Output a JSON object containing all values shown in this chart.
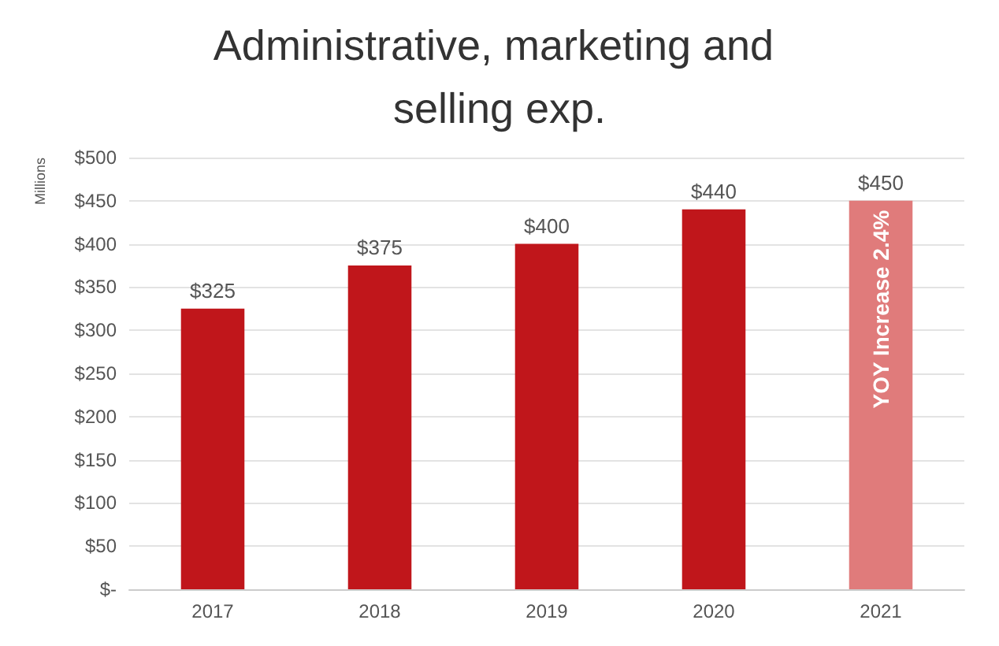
{
  "chart_data": {
    "type": "bar",
    "title": "Administrative, marketing and selling exp.",
    "ylabel": "Millions",
    "categories": [
      "2017",
      "2018",
      "2019",
      "2020",
      "2021"
    ],
    "values": [
      325,
      375,
      400,
      440,
      450
    ],
    "colors": [
      "#c0161b",
      "#c0161b",
      "#c0161b",
      "#c0161b",
      "#e07b7b"
    ],
    "value_labels": [
      "$325",
      "$375",
      "$400",
      "$440",
      "$450"
    ],
    "ylim": [
      0,
      500
    ],
    "yticks": [
      {
        "value": 0,
        "label": "$-"
      },
      {
        "value": 50,
        "label": "$50"
      },
      {
        "value": 100,
        "label": "$100"
      },
      {
        "value": 150,
        "label": "$150"
      },
      {
        "value": 200,
        "label": "$200"
      },
      {
        "value": 250,
        "label": "$250"
      },
      {
        "value": 300,
        "label": "$300"
      },
      {
        "value": 350,
        "label": "$350"
      },
      {
        "value": 400,
        "label": "$400"
      },
      {
        "value": 450,
        "label": "$450"
      },
      {
        "value": 500,
        "label": "$500"
      }
    ],
    "grid": "y",
    "annotations": [
      "YOY Increase 2.4%"
    ]
  }
}
